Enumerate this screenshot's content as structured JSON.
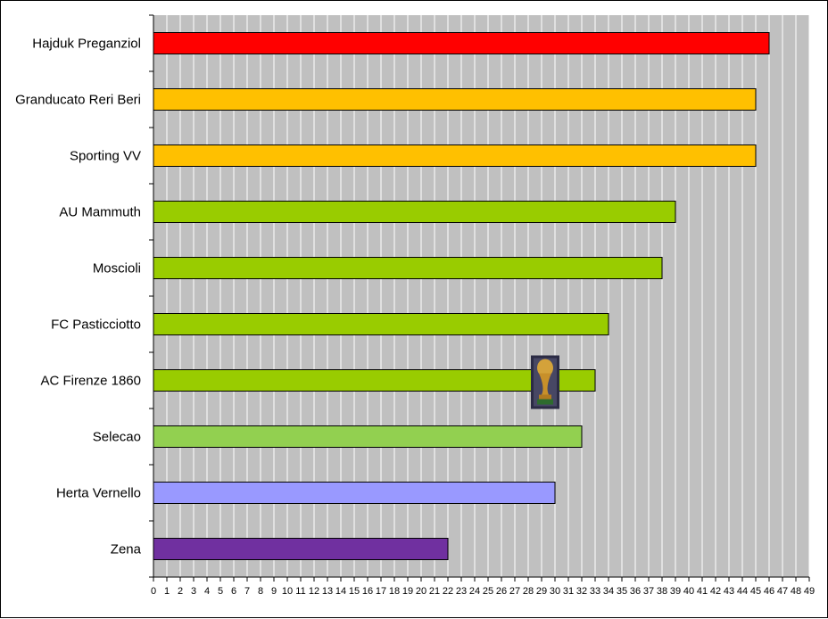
{
  "chart_data": {
    "type": "bar",
    "orientation": "horizontal",
    "categories": [
      "Hajduk Preganziol",
      "Granducato Reri Beri",
      "Sporting VV",
      "AU Mammuth",
      "Moscioli",
      "FC Pasticciotto",
      "AC Firenze 1860",
      "Selecao",
      "Herta Vernello",
      "Zena"
    ],
    "values": [
      46,
      45,
      45,
      39,
      38,
      34,
      33,
      32,
      30,
      22
    ],
    "bar_colors": [
      "#ff0000",
      "#ffc000",
      "#ffc000",
      "#99cc00",
      "#99cc00",
      "#99cc00",
      "#99cc00",
      "#92d050",
      "#9999ff",
      "#7030a0"
    ],
    "xlim": [
      0,
      49
    ],
    "x_ticks": [
      0,
      1,
      2,
      3,
      4,
      5,
      6,
      7,
      8,
      9,
      10,
      11,
      12,
      13,
      14,
      15,
      16,
      17,
      18,
      19,
      20,
      21,
      22,
      23,
      24,
      25,
      26,
      27,
      28,
      29,
      30,
      31,
      32,
      33,
      34,
      35,
      36,
      37,
      38,
      39,
      40,
      41,
      42,
      43,
      44,
      45,
      46,
      47,
      48,
      49
    ],
    "grid": "vertical",
    "plot_background": "#c0c0c0",
    "grid_color": "#ffffff",
    "title": "",
    "xlabel": "",
    "ylabel": "",
    "annotation_icon": "trophy-icon",
    "annotation_category": "AC Firenze 1860"
  }
}
